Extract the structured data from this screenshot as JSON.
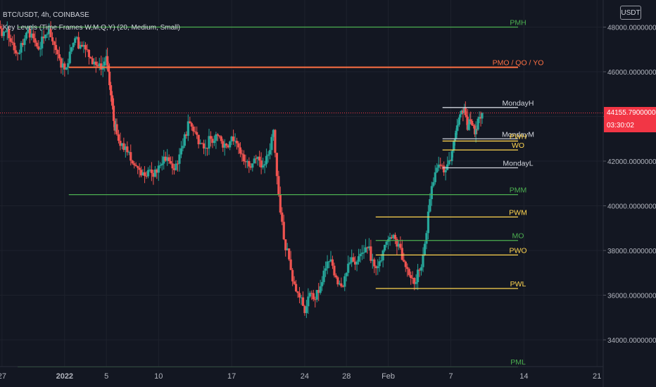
{
  "header": {
    "title": "BTC/USDT, 4h, COINBASE",
    "indicator": "Key Levels (Time Frames W,M,Q,Y) (20, Medium, Small)",
    "currency": "USDT"
  },
  "price_tag": {
    "price": "44155.79000000",
    "countdown": "03:30:02"
  },
  "colors": {
    "background": "#131722",
    "up": "#26a69a",
    "down": "#ef5350",
    "monthly": "#4caf50",
    "weekly": "#ffd54f",
    "yearly": "#ff7043",
    "mondays": "#d1d4dc",
    "current": "#f23645"
  },
  "chart_data": {
    "type": "candlestick",
    "symbol": "BTC/USDT",
    "interval": "4h",
    "exchange": "COINBASE",
    "ylim": [
      33000,
      49000
    ],
    "y_ticks": [
      "48000.00000000",
      "46000.00000000",
      "44000.00000000",
      "42000.00000000",
      "40000.00000000",
      "38000.00000000",
      "36000.00000000",
      "34000.00000000"
    ],
    "y_tick_values": [
      48000,
      46000,
      44000,
      42000,
      40000,
      38000,
      36000,
      34000
    ],
    "x_ticks": [
      {
        "label": "27",
        "day": -5
      },
      {
        "label": "2022",
        "day": 1
      },
      {
        "label": "5",
        "day": 5
      },
      {
        "label": "10",
        "day": 10
      },
      {
        "label": "17",
        "day": 17
      },
      {
        "label": "24",
        "day": 24
      },
      {
        "label": "28",
        "day": 28
      },
      {
        "label": "Feb",
        "day": 32
      },
      {
        "label": "7",
        "day": 38
      },
      {
        "label": "14",
        "day": 45
      },
      {
        "label": "21",
        "day": 52
      }
    ],
    "current_price": 44155.79,
    "levels": [
      {
        "label": "PMH",
        "price": 48000,
        "start_day": -3.5,
        "group": "monthly"
      },
      {
        "label": "PMO / QO / YO",
        "price": 46200,
        "start_day": 1.4,
        "group": "yearly"
      },
      {
        "label": "MondayH",
        "price": 44400,
        "start_day": 37.2,
        "group": "mondays"
      },
      {
        "label": "MondayM",
        "price": 43000,
        "start_day": 37.2,
        "group": "mondays"
      },
      {
        "label": "PWH",
        "price": 42900,
        "start_day": 37.2,
        "group": "weekly"
      },
      {
        "label": "WO",
        "price": 42500,
        "start_day": 37.2,
        "group": "weekly"
      },
      {
        "label": "MondayL",
        "price": 41700,
        "start_day": 37.2,
        "group": "mondays"
      },
      {
        "label": "PMM",
        "price": 40500,
        "start_day": 1.4,
        "group": "monthly"
      },
      {
        "label": "PWM",
        "price": 39500,
        "start_day": 30.8,
        "group": "weekly"
      },
      {
        "label": "MO",
        "price": 38450,
        "start_day": 30.8,
        "group": "monthly"
      },
      {
        "label": "PWO",
        "price": 37800,
        "start_day": 30.8,
        "group": "weekly"
      },
      {
        "label": "PWL",
        "price": 36300,
        "start_day": 30.8,
        "group": "weekly"
      },
      {
        "label": "PML",
        "price": 32800,
        "start_day": -3.5,
        "group": "monthly"
      }
    ],
    "closes": [
      [
        -6.0,
        48600
      ],
      [
        -5.5,
        48200
      ],
      [
        -5.0,
        47600
      ],
      [
        -4.5,
        47900
      ],
      [
        -4.0,
        47300
      ],
      [
        -3.5,
        46800
      ],
      [
        -3.0,
        47200
      ],
      [
        -2.5,
        47900
      ],
      [
        -2.0,
        47500
      ],
      [
        -1.5,
        47000
      ],
      [
        -1.0,
        47500
      ],
      [
        -0.5,
        47900
      ],
      [
        0.0,
        47200
      ],
      [
        0.5,
        46600
      ],
      [
        1.0,
        46100
      ],
      [
        1.5,
        46900
      ],
      [
        2.0,
        47500
      ],
      [
        2.5,
        47200
      ],
      [
        3.0,
        47000
      ],
      [
        3.5,
        46600
      ],
      [
        4.0,
        46300
      ],
      [
        4.5,
        46100
      ],
      [
        5.0,
        46700
      ],
      [
        5.3,
        45400
      ],
      [
        5.7,
        43800
      ],
      [
        6.0,
        43200
      ],
      [
        6.5,
        42800
      ],
      [
        7.0,
        42400
      ],
      [
        7.5,
        41900
      ],
      [
        8.0,
        41700
      ],
      [
        8.5,
        41500
      ],
      [
        9.0,
        41600
      ],
      [
        9.5,
        41300
      ],
      [
        10.0,
        41800
      ],
      [
        10.5,
        42200
      ],
      [
        11.0,
        42000
      ],
      [
        11.5,
        41600
      ],
      [
        12.0,
        42300
      ],
      [
        12.5,
        43200
      ],
      [
        13.0,
        43700
      ],
      [
        13.5,
        43300
      ],
      [
        14.0,
        42800
      ],
      [
        14.5,
        42600
      ],
      [
        15.0,
        43000
      ],
      [
        15.5,
        43200
      ],
      [
        16.0,
        42900
      ],
      [
        16.5,
        42700
      ],
      [
        17.0,
        43100
      ],
      [
        17.5,
        42800
      ],
      [
        18.0,
        42300
      ],
      [
        18.5,
        42000
      ],
      [
        19.0,
        41900
      ],
      [
        19.5,
        42200
      ],
      [
        20.0,
        41800
      ],
      [
        20.5,
        42300
      ],
      [
        21.0,
        43400
      ],
      [
        21.5,
        40500
      ],
      [
        22.0,
        38500
      ],
      [
        22.5,
        37600
      ],
      [
        23.0,
        36500
      ],
      [
        23.5,
        35900
      ],
      [
        24.0,
        35200
      ],
      [
        24.5,
        36100
      ],
      [
        25.0,
        35800
      ],
      [
        25.5,
        36400
      ],
      [
        26.0,
        37200
      ],
      [
        26.5,
        37600
      ],
      [
        27.0,
        36800
      ],
      [
        27.5,
        36400
      ],
      [
        28.0,
        37000
      ],
      [
        28.5,
        37700
      ],
      [
        29.0,
        37500
      ],
      [
        29.5,
        37900
      ],
      [
        30.0,
        38100
      ],
      [
        30.5,
        37600
      ],
      [
        31.0,
        37300
      ],
      [
        31.5,
        38000
      ],
      [
        32.0,
        38500
      ],
      [
        32.5,
        38700
      ],
      [
        33.0,
        38300
      ],
      [
        33.5,
        37500
      ],
      [
        34.0,
        36900
      ],
      [
        34.5,
        36500
      ],
      [
        35.0,
        37100
      ],
      [
        35.5,
        38300
      ],
      [
        36.0,
        40300
      ],
      [
        36.5,
        41500
      ],
      [
        37.0,
        41800
      ],
      [
        37.5,
        41600
      ],
      [
        38.0,
        42000
      ],
      [
        38.3,
        42900
      ],
      [
        38.6,
        43600
      ],
      [
        38.9,
        44100
      ],
      [
        39.3,
        44400
      ],
      [
        39.6,
        43400
      ],
      [
        39.9,
        43800
      ],
      [
        40.3,
        43200
      ],
      [
        40.6,
        43900
      ],
      [
        41.0,
        44155.79
      ]
    ]
  }
}
